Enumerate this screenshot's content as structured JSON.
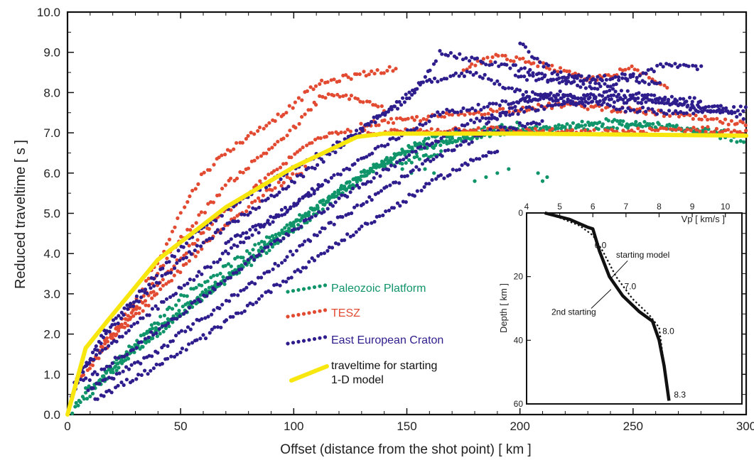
{
  "chart_data": [
    {
      "type": "scatter",
      "xlabel": "Offset  (distance from the shot point)  [ km ]",
      "ylabel": "Reduced traveltime  [ s ]",
      "xlim": [
        0,
        300
      ],
      "ylim": [
        0,
        10
      ],
      "x_ticks": [
        "0",
        "50",
        "100",
        "150",
        "200",
        "250",
        "300"
      ],
      "y_ticks": [
        "0.0",
        "1.0",
        "2.0",
        "3.0",
        "4.0",
        "5.0",
        "6.0",
        "7.0",
        "8.0",
        "9.0",
        "10.0"
      ],
      "grid": false,
      "legend_position": "center",
      "series": [
        {
          "name": "Paleozoic Platform",
          "color": "#10946a",
          "marker": "dot",
          "bands": [
            [
              [
                2,
                0.05
              ],
              [
                30,
                1.6
              ],
              [
                70,
                3.3
              ],
              [
                110,
                5.0
              ],
              [
                140,
                6.3
              ],
              [
                175,
                6.9
              ],
              [
                210,
                7.1
              ],
              [
                260,
                7.2
              ],
              [
                300,
                6.8
              ]
            ],
            [
              [
                4,
                0.3
              ],
              [
                35,
                2.0
              ],
              [
                80,
                3.8
              ],
              [
                120,
                5.6
              ],
              [
                150,
                6.6
              ],
              [
                190,
                7.0
              ],
              [
                240,
                7.3
              ],
              [
                290,
                7.0
              ]
            ],
            [
              [
                8,
                0.6
              ],
              [
                45,
                2.3
              ],
              [
                90,
                4.3
              ],
              [
                130,
                6.0
              ],
              [
                160,
                6.9
              ],
              [
                200,
                7.2
              ]
            ],
            [
              [
                14,
                0.9
              ],
              [
                50,
                2.9
              ],
              [
                100,
                4.8
              ],
              [
                135,
                6.1
              ],
              [
                165,
                6.5
              ]
            ]
          ],
          "clusters": [
            [
              [
                148,
                6.1
              ],
              [
                152,
                6.0
              ],
              [
                158,
                6.1
              ],
              [
                162,
                6.0
              ]
            ],
            [
              [
                180,
                5.8
              ],
              [
                185,
                5.9
              ],
              [
                190,
                6.0
              ],
              [
                195,
                6.1
              ]
            ],
            [
              [
                208,
                6.0
              ],
              [
                210,
                5.8
              ],
              [
                212,
                5.9
              ]
            ]
          ]
        },
        {
          "name": "TESZ",
          "color": "#e24a32",
          "marker": "dot",
          "bands": [
            [
              [
                6,
                0.9
              ],
              [
                25,
                2.4
              ],
              [
                40,
                3.8
              ],
              [
                50,
                5.0
              ],
              [
                60,
                6.0
              ],
              [
                72,
                6.6
              ],
              [
                85,
                7.1
              ],
              [
                98,
                7.6
              ],
              [
                110,
                8.2
              ],
              [
                125,
                8.4
              ],
              [
                145,
                8.6
              ]
            ],
            [
              [
                10,
                1.2
              ],
              [
                30,
                2.6
              ],
              [
                45,
                4.0
              ],
              [
                58,
                4.9
              ],
              [
                70,
                5.7
              ],
              [
                85,
                6.4
              ],
              [
                100,
                7.1
              ],
              [
                112,
                7.9
              ],
              [
                125,
                7.9
              ],
              [
                140,
                7.6
              ]
            ],
            [
              [
                15,
                1.7
              ],
              [
                35,
                2.9
              ],
              [
                50,
                3.9
              ],
              [
                65,
                4.8
              ],
              [
                80,
                5.5
              ],
              [
                95,
                6.2
              ],
              [
                110,
                6.9
              ],
              [
                125,
                7.1
              ]
            ],
            [
              [
                20,
                1.9
              ],
              [
                40,
                3.0
              ],
              [
                60,
                4.2
              ],
              [
                75,
                4.9
              ],
              [
                90,
                5.6
              ],
              [
                105,
                6.1
              ]
            ],
            [
              [
                130,
                7.2
              ],
              [
                180,
                7.5
              ],
              [
                220,
                7.7
              ],
              [
                260,
                7.5
              ],
              [
                300,
                7.2
              ]
            ],
            [
              [
                130,
                7.0
              ],
              [
                180,
                7.1
              ],
              [
                230,
                7.0
              ],
              [
                280,
                7.1
              ],
              [
                300,
                7.0
              ]
            ],
            [
              [
                175,
                8.6
              ],
              [
                190,
                8.9
              ],
              [
                210,
                8.7
              ],
              [
                230,
                8.3
              ],
              [
                250,
                8.6
              ],
              [
                265,
                8.1
              ]
            ]
          ],
          "clusters": []
        },
        {
          "name": "East European Craton",
          "color": "#2e1d8c",
          "marker": "dot",
          "bands": [
            [
              [
                2,
                0.5
              ],
              [
                15,
                2.0
              ],
              [
                35,
                3.2
              ],
              [
                55,
                4.4
              ],
              [
                75,
                5.3
              ],
              [
                100,
                6.1
              ],
              [
                125,
                6.9
              ],
              [
                150,
                7.8
              ],
              [
                165,
                9.0
              ],
              [
                180,
                8.8
              ],
              [
                200,
                8.6
              ],
              [
                215,
                8.3
              ],
              [
                235,
                8.1
              ],
              [
                255,
                7.9
              ],
              [
                280,
                7.8
              ]
            ],
            [
              [
                3,
                0.8
              ],
              [
                20,
                2.2
              ],
              [
                40,
                3.3
              ],
              [
                60,
                4.3
              ],
              [
                85,
                5.2
              ],
              [
                110,
                6.2
              ],
              [
                135,
                7.3
              ],
              [
                160,
                8.3
              ],
              [
                180,
                8.5
              ],
              [
                200,
                8.0
              ],
              [
                230,
                7.7
              ]
            ],
            [
              [
                5,
                1.1
              ],
              [
                25,
                2.0
              ],
              [
                45,
                2.9
              ],
              [
                65,
                3.8
              ],
              [
                90,
                4.8
              ],
              [
                115,
                5.8
              ],
              [
                140,
                6.7
              ],
              [
                165,
                7.5
              ],
              [
                190,
                7.7
              ],
              [
                210,
                7.9
              ],
              [
                240,
                7.9
              ],
              [
                270,
                7.7
              ],
              [
                300,
                7.4
              ]
            ],
            [
              [
                7,
                0.8
              ],
              [
                30,
                1.7
              ],
              [
                55,
                2.7
              ],
              [
                80,
                3.8
              ],
              [
                105,
                4.8
              ],
              [
                130,
                5.7
              ],
              [
                155,
                6.6
              ],
              [
                180,
                7.3
              ],
              [
                205,
                7.6
              ],
              [
                230,
                7.8
              ],
              [
                260,
                7.8
              ],
              [
                290,
                7.6
              ]
            ],
            [
              [
                9,
                0.6
              ],
              [
                35,
                1.4
              ],
              [
                60,
                2.4
              ],
              [
                85,
                3.4
              ],
              [
                110,
                4.5
              ],
              [
                135,
                5.4
              ],
              [
                160,
                6.3
              ],
              [
                185,
                7.0
              ],
              [
                210,
                7.3
              ]
            ],
            [
              [
                12,
                0.4
              ],
              [
                40,
                1.2
              ],
              [
                65,
                2.1
              ],
              [
                90,
                3.1
              ],
              [
                115,
                4.1
              ],
              [
                140,
                5.0
              ],
              [
                165,
                5.9
              ],
              [
                190,
                6.6
              ]
            ],
            [
              [
                70,
                4.3
              ],
              [
                85,
                4.7
              ],
              [
                100,
                5.2
              ],
              [
                112,
                5.7
              ]
            ],
            [
              [
                200,
                9.2
              ],
              [
                215,
                8.5
              ],
              [
                240,
                8.2
              ],
              [
                265,
                8.7
              ],
              [
                280,
                8.6
              ]
            ],
            [
              [
                185,
                7.2
              ],
              [
                200,
                7.8
              ],
              [
                220,
                8.0
              ],
              [
                245,
                7.6
              ],
              [
                270,
                7.5
              ],
              [
                300,
                7.6
              ]
            ],
            [
              [
                198,
                8.4
              ],
              [
                220,
                8.3
              ],
              [
                245,
                8.4
              ],
              [
                262,
                8.2
              ]
            ]
          ],
          "clusters": []
        },
        {
          "name": "traveltime for starting\n1-D model",
          "color": "#f7e70f",
          "marker": "line",
          "x": [
            0,
            8,
            18,
            40,
            70,
            100,
            128,
            140,
            200,
            300
          ],
          "y": [
            0.0,
            1.65,
            2.35,
            3.85,
            5.15,
            6.15,
            6.9,
            6.98,
            6.98,
            6.93
          ]
        }
      ],
      "legend": {
        "entries": [
          {
            "label": "Paleozoic Platform",
            "color": "#10946a",
            "kind": "dots"
          },
          {
            "label": "TESZ",
            "color": "#e24a32",
            "kind": "dots"
          },
          {
            "label": "East European Craton",
            "color": "#2e1d8c",
            "kind": "dots"
          },
          {
            "label_lines": [
              "traveltime for starting",
              "1-D model"
            ],
            "color": "#f7e70f",
            "kind": "line"
          }
        ]
      }
    },
    {
      "type": "line",
      "inset": true,
      "xlabel": "Vp  [ km/s ]",
      "ylabel": "Depth  [ km ]",
      "xlim": [
        4,
        10.5
      ],
      "ylim": [
        0,
        60
      ],
      "y_inverted": true,
      "x_ticks": [
        "4",
        "5",
        "6",
        "7",
        "8",
        "9",
        "10"
      ],
      "y_ticks": [
        "0",
        "20",
        "40",
        "60"
      ],
      "series": [
        {
          "name": "starting model",
          "style": "dotted",
          "x": [
            4.55,
            5.0,
            5.6,
            6.0,
            6.3,
            6.7,
            7.2,
            7.7,
            8.0,
            8.15,
            8.3
          ],
          "y": [
            0,
            1.5,
            4,
            7,
            12,
            20,
            27,
            32,
            36,
            48,
            59
          ]
        },
        {
          "name": "2nd starting",
          "style": "solid",
          "x": [
            4.55,
            5.3,
            5.85,
            6.0,
            6.2,
            6.5,
            6.9,
            7.4,
            7.8,
            8.0,
            8.15,
            8.3
          ],
          "y": [
            0,
            2,
            4.5,
            5,
            12,
            20,
            26,
            31,
            34,
            40,
            48,
            59
          ]
        }
      ],
      "annotations": [
        {
          "text": "6.0",
          "x": 6.05,
          "y": 11
        },
        {
          "text": "7.0",
          "x": 6.95,
          "y": 24
        },
        {
          "text": "8.0",
          "x": 8.1,
          "y": 38
        },
        {
          "text": "8.3",
          "x": 8.45,
          "y": 58
        },
        {
          "text": "starting model",
          "x": 6.7,
          "y": 14
        },
        {
          "text": "2nd starting",
          "x": 4.75,
          "y": 32
        }
      ]
    }
  ]
}
